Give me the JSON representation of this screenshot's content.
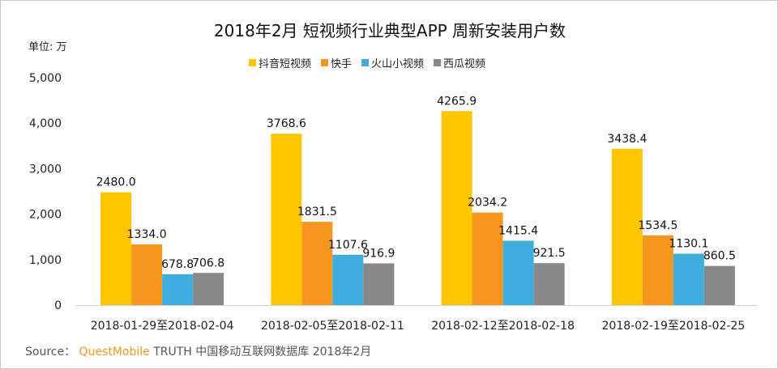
{
  "chart_data": {
    "type": "bar",
    "title": "2018年2月 短视频行业典型APP 周新安装用户数",
    "unit_label": "单位: 万",
    "categories": [
      "2018-01-29至2018-02-04",
      "2018-02-05至2018-02-11",
      "2018-02-12至2018-02-18",
      "2018-02-19至2018-02-25"
    ],
    "series": [
      {
        "name": "抖音短视频",
        "color": "#FFC600",
        "values": [
          2480.0,
          3768.6,
          4265.9,
          3438.4
        ],
        "labels": [
          "2480.0",
          "3768.6",
          "4265.9",
          "3438.4"
        ]
      },
      {
        "name": "快手",
        "color": "#F7961E",
        "values": [
          1334.0,
          1831.5,
          2034.2,
          1534.5
        ],
        "labels": [
          "1334.0",
          "1831.5",
          "2034.2",
          "1534.5"
        ]
      },
      {
        "name": "火山小视频",
        "color": "#3FAEDE",
        "values": [
          678.8,
          1107.6,
          1415.4,
          1130.1
        ],
        "labels": [
          "678.8",
          "1107.6",
          "1415.4",
          "1130.1"
        ]
      },
      {
        "name": "西瓜视频",
        "color": "#888888",
        "values": [
          706.8,
          916.9,
          921.5,
          860.5
        ],
        "labels": [
          "706.8",
          "916.9",
          "921.5",
          "860.5"
        ]
      }
    ],
    "ylim": [
      0,
      5000
    ],
    "yticks": [
      0,
      1000,
      2000,
      3000,
      4000,
      5000
    ],
    "ytick_labels": [
      "0",
      "1,000",
      "2,000",
      "3,000",
      "4,000",
      "5,000"
    ],
    "grid": false,
    "legend_position": "top"
  },
  "source": {
    "prefix": "Source：",
    "brand": "QuestMobile",
    "rest": " TRUTH 中国移动互联网数据库 2018年2月"
  }
}
